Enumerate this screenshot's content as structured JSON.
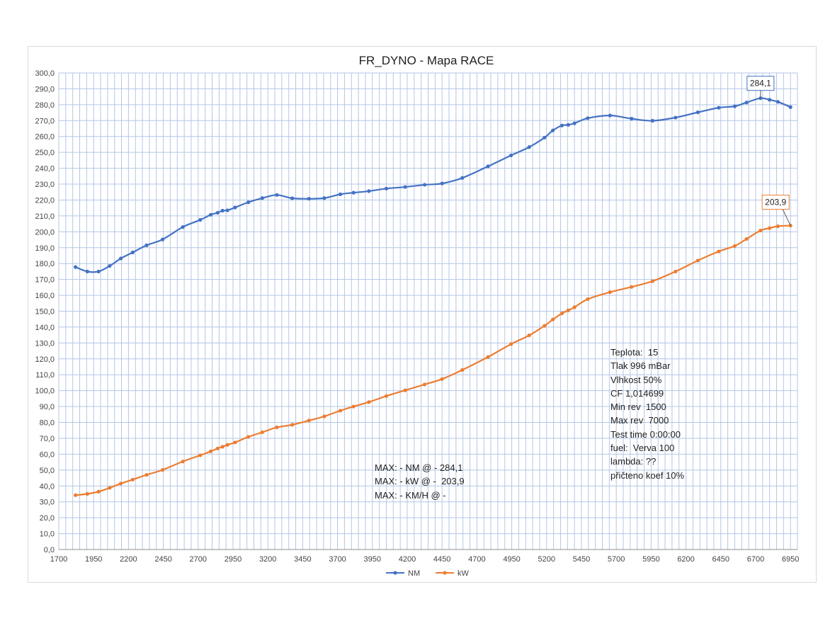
{
  "chart_data": {
    "type": "line",
    "title": "FR_DYNO - Mapa RACE",
    "xlim": [
      1700,
      7000
    ],
    "ylim": [
      0,
      300
    ],
    "xticks": [
      "1700",
      "1950",
      "2200",
      "2450",
      "2700",
      "2950",
      "3200",
      "3450",
      "3700",
      "3950",
      "4200",
      "4450",
      "4700",
      "4950",
      "5200",
      "5450",
      "5700",
      "5950",
      "6200",
      "6450",
      "6700",
      "6950"
    ],
    "yticks": [
      "0,0",
      "10,0",
      "20,0",
      "30,0",
      "40,0",
      "50,0",
      "60,0",
      "70,0",
      "80,0",
      "90,0",
      "100,0",
      "110,0",
      "120,0",
      "130,0",
      "140,0",
      "150,0",
      "160,0",
      "170,0",
      "180,0",
      "190,0",
      "200,0",
      "210,0",
      "220,0",
      "230,0",
      "240,0",
      "250,0",
      "260,0",
      "270,0",
      "280,0",
      "290,0",
      "300,0"
    ],
    "grid": true,
    "legend": "bottom",
    "x": [
      1820,
      1905,
      1985,
      2065,
      2145,
      2230,
      2330,
      2445,
      2590,
      2715,
      2790,
      2840,
      2875,
      2910,
      2965,
      3060,
      3160,
      3265,
      3375,
      3495,
      3605,
      3720,
      3815,
      3925,
      4050,
      4185,
      4325,
      4450,
      4595,
      4780,
      4945,
      5075,
      5185,
      5245,
      5310,
      5355,
      5400,
      5495,
      5655,
      5810,
      5960,
      6125,
      6285,
      6435,
      6550,
      6635,
      6735,
      6800,
      6860,
      6950
    ],
    "series": [
      {
        "name": "NM",
        "color": "#4472c4",
        "values": [
          177.8,
          175.0,
          175.0,
          178.5,
          183.2,
          187.0,
          191.5,
          195.2,
          203.0,
          207.5,
          210.7,
          212.0,
          213.3,
          213.5,
          215.3,
          218.6,
          221.2,
          223.2,
          221.1,
          220.8,
          221.2,
          223.6,
          224.6,
          225.6,
          227.2,
          228.2,
          229.6,
          230.4,
          233.9,
          241.2,
          248.1,
          253.3,
          259.3,
          263.8,
          266.9,
          267.3,
          268.3,
          271.5,
          273.2,
          271.2,
          269.9,
          271.9,
          275.2,
          278.1,
          279.0,
          281.4,
          284.1,
          283.1,
          281.8,
          278.5
        ]
      },
      {
        "name": "kW",
        "color": "#ed7d31",
        "values": [
          34.2,
          35.0,
          36.4,
          38.8,
          41.5,
          44.0,
          47.0,
          50.1,
          55.4,
          59.3,
          61.8,
          63.6,
          64.7,
          65.9,
          67.4,
          70.9,
          73.8,
          76.9,
          78.5,
          81.2,
          83.8,
          87.4,
          90.0,
          92.8,
          96.6,
          100.2,
          103.9,
          107.3,
          113.0,
          121.2,
          129.3,
          134.8,
          140.8,
          144.8,
          148.6,
          150.5,
          152.5,
          157.6,
          162.0,
          165.3,
          168.9,
          175.0,
          181.9,
          187.6,
          191.1,
          195.5,
          200.8,
          202.3,
          203.5,
          203.9
        ]
      }
    ],
    "max_labels": [
      {
        "series": "NM",
        "value": "284,1",
        "x": 6735,
        "y": 284.1
      },
      {
        "series": "kW",
        "value": "203,9",
        "x": 6950,
        "y": 203.9
      }
    ]
  },
  "info_box": {
    "lines": [
      "Teplota:  15",
      "Tlak 996 mBar",
      "Vlhkost 50%",
      "CF 1,014699",
      "Min rev  1500",
      "Max rev  7000",
      "Test time 0:00:00",
      "fuel:  Verva 100",
      "lambda: ??",
      "přičteno koef 10%"
    ]
  },
  "max_box": {
    "lines": [
      "MAX: - NM @ - 284,1",
      "MAX: - kW @ -  203,9",
      "MAX: - KM/H @ -"
    ]
  }
}
